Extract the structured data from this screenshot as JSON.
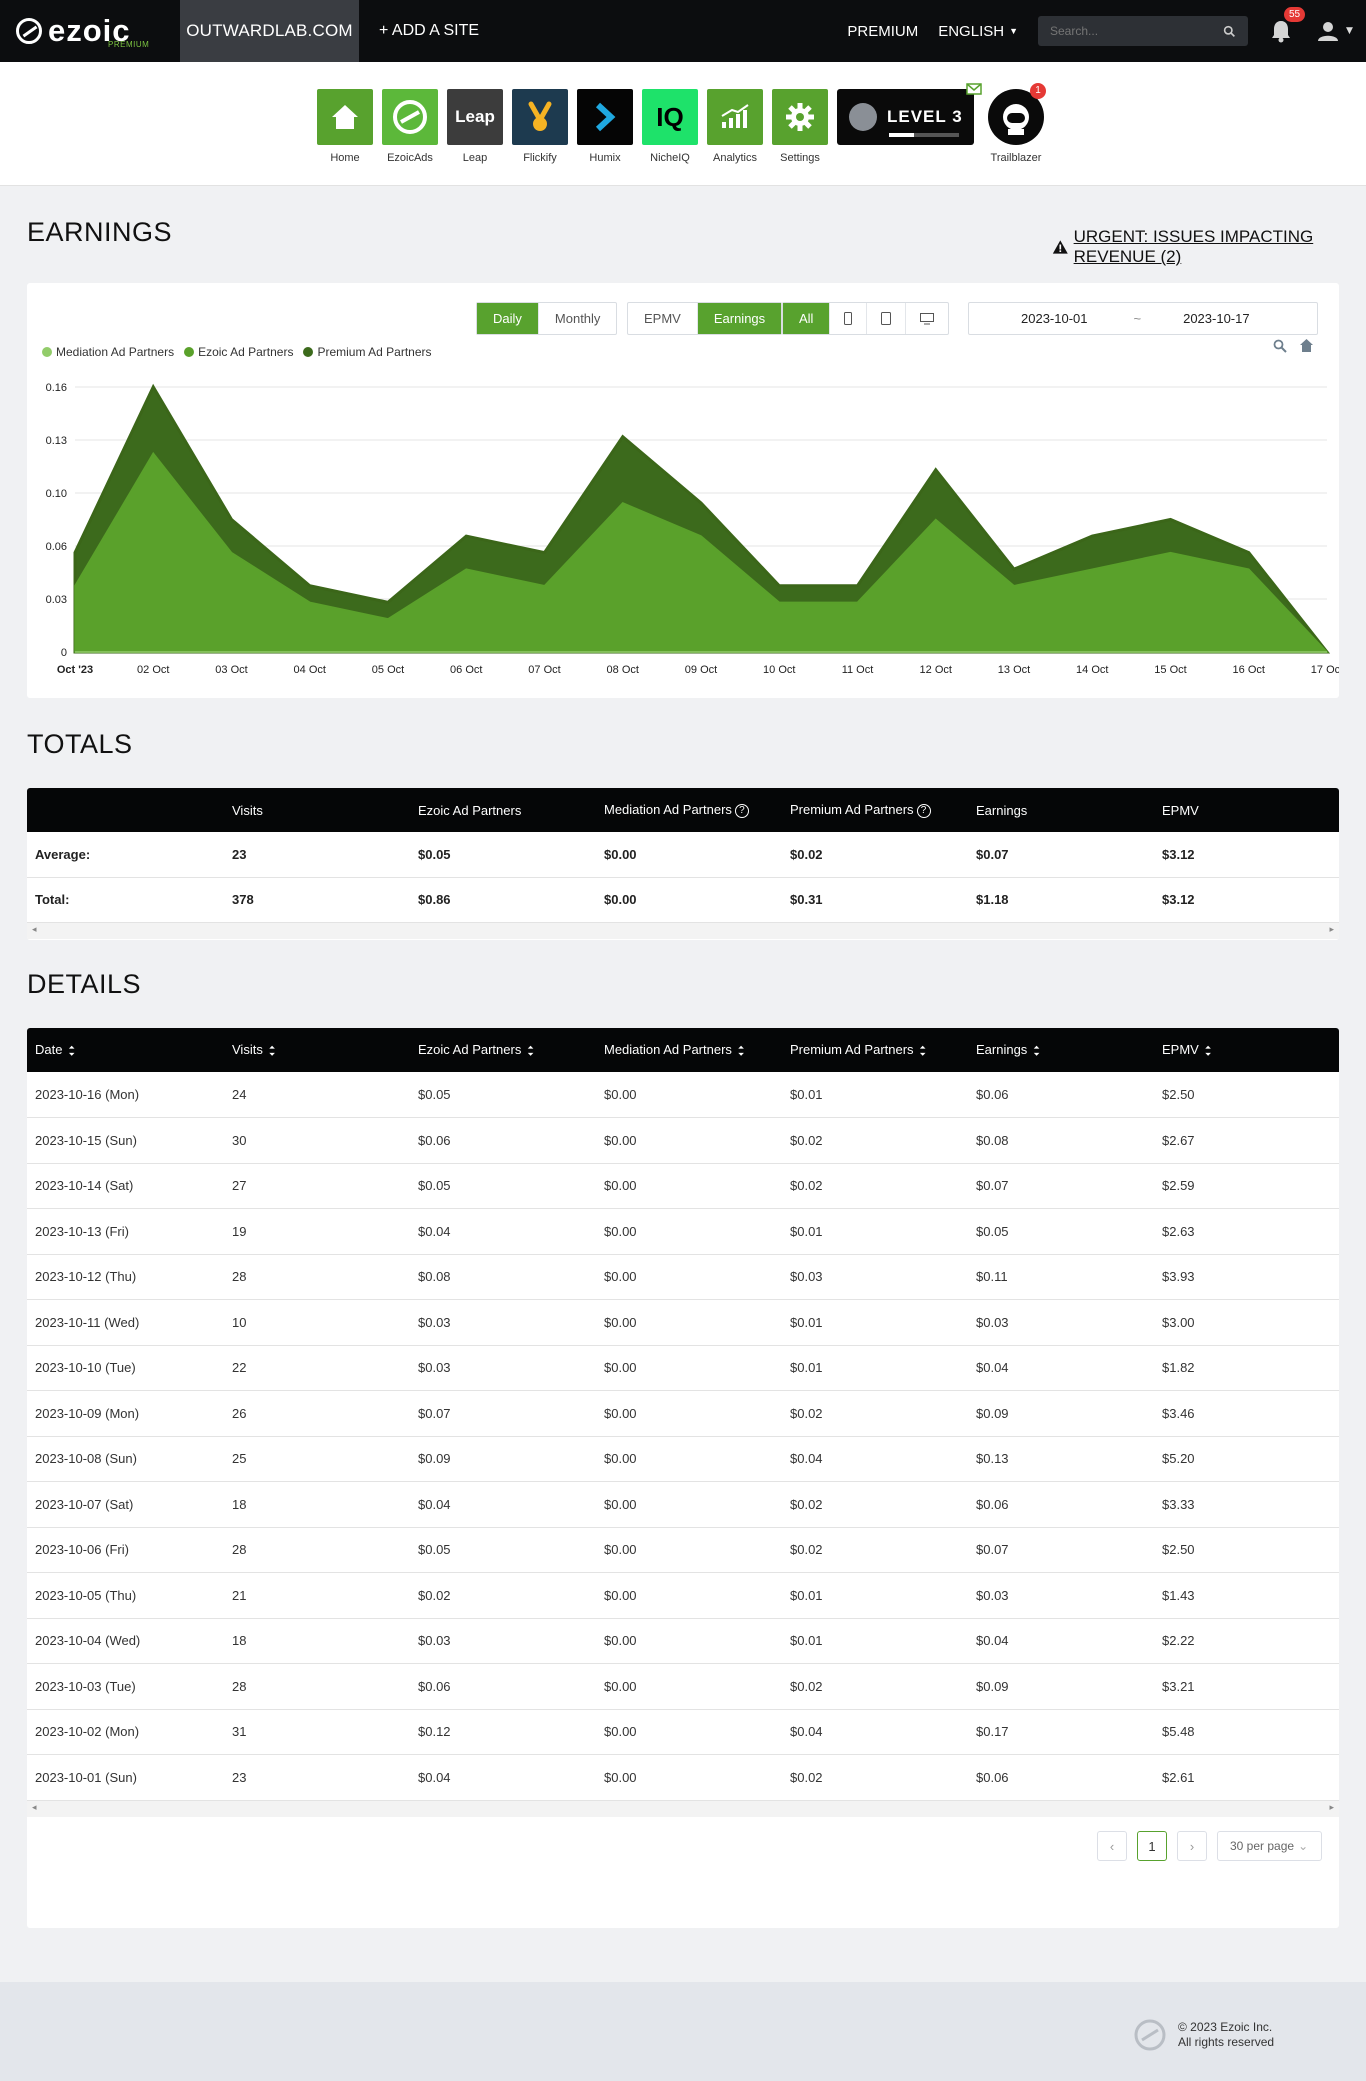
{
  "topbar": {
    "logo": "ezoic",
    "logo_sub": "PREMIUM",
    "site": "OUTWARDLAB.COM",
    "add_site": "+ ADD A SITE",
    "premium": "PREMIUM",
    "language": "ENGLISH",
    "search_placeholder": "Search...",
    "notification_count": "55"
  },
  "apps": [
    {
      "label": "Home",
      "icon": "home-icon",
      "color": "#58a22e"
    },
    {
      "label": "EzoicAds",
      "icon": "ezoic-ads-icon",
      "color": "#5cb83a"
    },
    {
      "label": "Leap",
      "icon": "leap-icon",
      "color": "#3c3c3c",
      "text": "Leap"
    },
    {
      "label": "Flickify",
      "icon": "flickify-icon",
      "color": "#1d3a4f"
    },
    {
      "label": "Humix",
      "icon": "humix-icon",
      "color": "#050505"
    },
    {
      "label": "NicheIQ",
      "icon": "nicheiq-icon",
      "color": "#1ee26a",
      "text": "IQ"
    },
    {
      "label": "Analytics",
      "icon": "analytics-icon",
      "color": "#58a22e"
    },
    {
      "label": "Settings",
      "icon": "settings-icon",
      "color": "#58a22e"
    }
  ],
  "level": {
    "text": "LEVEL 3",
    "progress": 0.35
  },
  "trailblazer": {
    "label": "Trailblazer",
    "badge": "1"
  },
  "earnings": {
    "title": "EARNINGS",
    "urgent": "URGENT: ISSUES IMPACTING REVENUE (2)",
    "buttons": {
      "daily": "Daily",
      "monthly": "Monthly",
      "epmv": "EPMV",
      "earnings": "Earnings",
      "all": "All"
    },
    "date_from": "2023-10-01",
    "date_sep": "~",
    "date_to": "2023-10-17"
  },
  "chart_data": {
    "type": "area",
    "stacked": true,
    "title": "",
    "x": [
      "Oct '23",
      "02 Oct",
      "03 Oct",
      "04 Oct",
      "05 Oct",
      "06 Oct",
      "07 Oct",
      "08 Oct",
      "09 Oct",
      "10 Oct",
      "11 Oct",
      "12 Oct",
      "13 Oct",
      "14 Oct",
      "15 Oct",
      "16 Oct",
      "17 Oct"
    ],
    "yticks": [
      "0",
      "0.03",
      "0.06",
      "0.10",
      "0.13",
      "0.16"
    ],
    "ylim": [
      0,
      0.16
    ],
    "legend_position": "top-left",
    "series": [
      {
        "name": "Mediation Ad Partners",
        "color": "#92cc6a",
        "values": [
          0,
          0,
          0,
          0,
          0,
          0,
          0,
          0,
          0,
          0,
          0,
          0,
          0,
          0,
          0,
          0,
          0
        ]
      },
      {
        "name": "Ezoic Ad Partners",
        "color": "#5aa12b",
        "values": [
          0.04,
          0.12,
          0.06,
          0.03,
          0.02,
          0.05,
          0.04,
          0.09,
          0.07,
          0.03,
          0.03,
          0.08,
          0.04,
          0.05,
          0.06,
          0.05,
          0
        ]
      },
      {
        "name": "Premium Ad Partners",
        "color": "#3c6a1c",
        "values": [
          0.02,
          0.04,
          0.02,
          0.01,
          0.01,
          0.02,
          0.02,
          0.04,
          0.02,
          0.01,
          0.01,
          0.03,
          0.01,
          0.02,
          0.02,
          0.01,
          0
        ]
      }
    ]
  },
  "totals": {
    "title": "TOTALS",
    "headers": [
      "",
      "Visits",
      "Ezoic Ad Partners",
      "Mediation Ad Partners",
      "Premium Ad Partners",
      "Earnings",
      "EPMV"
    ],
    "rows": [
      [
        "Average:",
        "23",
        "$0.05",
        "$0.00",
        "$0.02",
        "$0.07",
        "$3.12"
      ],
      [
        "Total:",
        "378",
        "$0.86",
        "$0.00",
        "$0.31",
        "$1.18",
        "$3.12"
      ]
    ]
  },
  "details": {
    "title": "DETAILS",
    "headers": [
      "Date",
      "Visits",
      "Ezoic Ad Partners",
      "Mediation Ad Partners",
      "Premium Ad Partners",
      "Earnings",
      "EPMV"
    ],
    "rows": [
      [
        "2023-10-16 (Mon)",
        "24",
        "$0.05",
        "$0.00",
        "$0.01",
        "$0.06",
        "$2.50"
      ],
      [
        "2023-10-15 (Sun)",
        "30",
        "$0.06",
        "$0.00",
        "$0.02",
        "$0.08",
        "$2.67"
      ],
      [
        "2023-10-14 (Sat)",
        "27",
        "$0.05",
        "$0.00",
        "$0.02",
        "$0.07",
        "$2.59"
      ],
      [
        "2023-10-13 (Fri)",
        "19",
        "$0.04",
        "$0.00",
        "$0.01",
        "$0.05",
        "$2.63"
      ],
      [
        "2023-10-12 (Thu)",
        "28",
        "$0.08",
        "$0.00",
        "$0.03",
        "$0.11",
        "$3.93"
      ],
      [
        "2023-10-11 (Wed)",
        "10",
        "$0.03",
        "$0.00",
        "$0.01",
        "$0.03",
        "$3.00"
      ],
      [
        "2023-10-10 (Tue)",
        "22",
        "$0.03",
        "$0.00",
        "$0.01",
        "$0.04",
        "$1.82"
      ],
      [
        "2023-10-09 (Mon)",
        "26",
        "$0.07",
        "$0.00",
        "$0.02",
        "$0.09",
        "$3.46"
      ],
      [
        "2023-10-08 (Sun)",
        "25",
        "$0.09",
        "$0.00",
        "$0.04",
        "$0.13",
        "$5.20"
      ],
      [
        "2023-10-07 (Sat)",
        "18",
        "$0.04",
        "$0.00",
        "$0.02",
        "$0.06",
        "$3.33"
      ],
      [
        "2023-10-06 (Fri)",
        "28",
        "$0.05",
        "$0.00",
        "$0.02",
        "$0.07",
        "$2.50"
      ],
      [
        "2023-10-05 (Thu)",
        "21",
        "$0.02",
        "$0.00",
        "$0.01",
        "$0.03",
        "$1.43"
      ],
      [
        "2023-10-04 (Wed)",
        "18",
        "$0.03",
        "$0.00",
        "$0.01",
        "$0.04",
        "$2.22"
      ],
      [
        "2023-10-03 (Tue)",
        "28",
        "$0.06",
        "$0.00",
        "$0.02",
        "$0.09",
        "$3.21"
      ],
      [
        "2023-10-02 (Mon)",
        "31",
        "$0.12",
        "$0.00",
        "$0.04",
        "$0.17",
        "$5.48"
      ],
      [
        "2023-10-01 (Sun)",
        "23",
        "$0.04",
        "$0.00",
        "$0.02",
        "$0.06",
        "$2.61"
      ]
    ],
    "current_page": "1",
    "per_page": "30 per page"
  },
  "footer": {
    "copyright": "© 2023 Ezoic Inc.",
    "rights": "All rights reserved"
  },
  "colors": {
    "accent": "#58a22e",
    "dark": "#050607"
  }
}
